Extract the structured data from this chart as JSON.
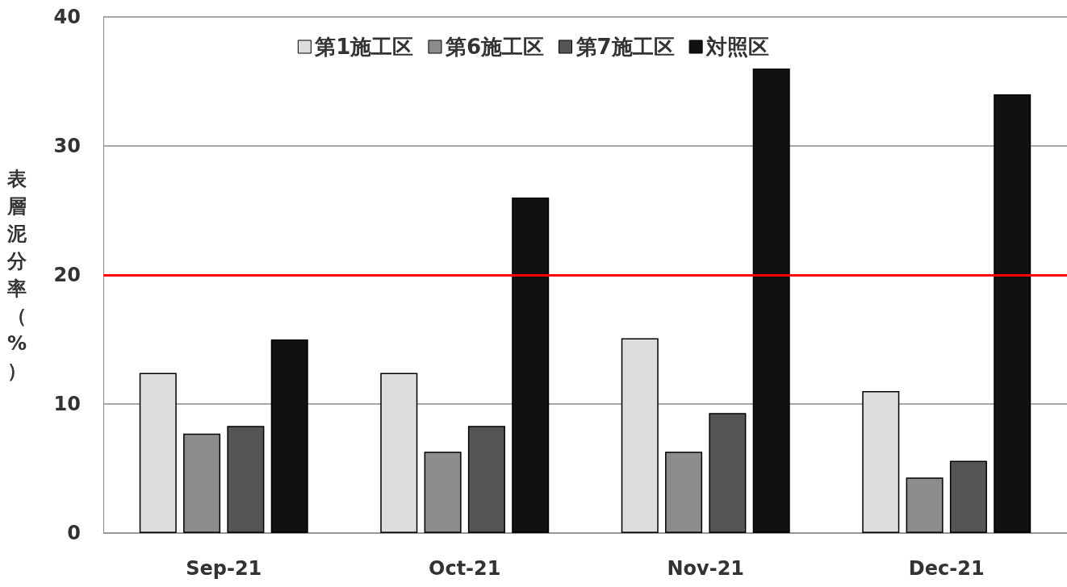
{
  "chart_data": {
    "type": "bar",
    "ylabel": "表層泥分率（%）",
    "categories": [
      "Sep-21",
      "Oct-21",
      "Nov-21",
      "Dec-21"
    ],
    "series": [
      {
        "name": "第1施工区",
        "color": "#dddddd",
        "values": [
          12.4,
          12.4,
          15.1,
          11
        ]
      },
      {
        "name": "第6施工区",
        "color": "#8c8c8c",
        "values": [
          7.7,
          6.3,
          6.3,
          4.3
        ]
      },
      {
        "name": "第7施工区",
        "color": "#555555",
        "values": [
          8.3,
          8.3,
          9.3,
          5.6
        ]
      },
      {
        "name": "対照区",
        "color": "#111111",
        "values": [
          15,
          26,
          36,
          34
        ]
      }
    ],
    "ylim": [
      0,
      40
    ],
    "yticks": [
      0,
      10,
      20,
      30,
      40
    ],
    "grid": "y",
    "legend": "top",
    "ref_lines": [
      {
        "axis": "y",
        "value": 20,
        "color": "#ff0000"
      }
    ]
  }
}
